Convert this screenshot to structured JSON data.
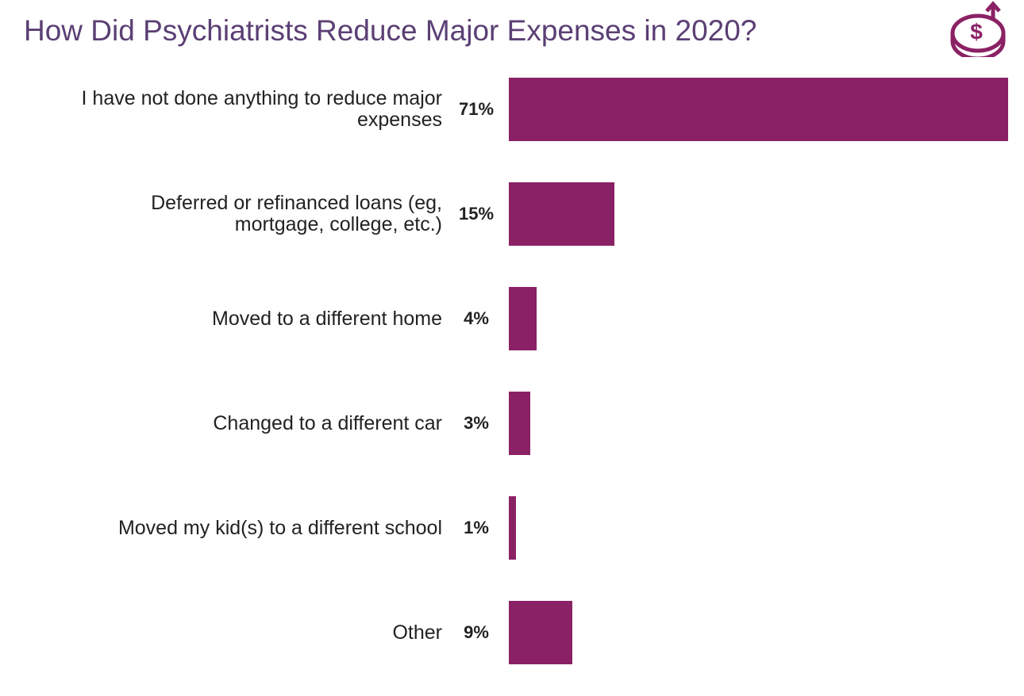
{
  "chart_data": {
    "type": "bar",
    "orientation": "horizontal",
    "title": "How Did Psychiatrists Reduce Major Expenses in 2020?",
    "categories": [
      "I have not done anything to reduce major expenses",
      "Deferred or refinanced loans (eg, mortgage, college, etc.)",
      "Moved to a different home",
      "Changed to a different car",
      "Moved my kid(s) to a different school",
      "Other"
    ],
    "values": [
      71,
      15,
      4,
      3,
      1,
      9
    ],
    "value_labels": [
      "71%",
      "15%",
      "4%",
      "3%",
      "1%",
      "9%"
    ],
    "color": "#8b2165"
  }
}
